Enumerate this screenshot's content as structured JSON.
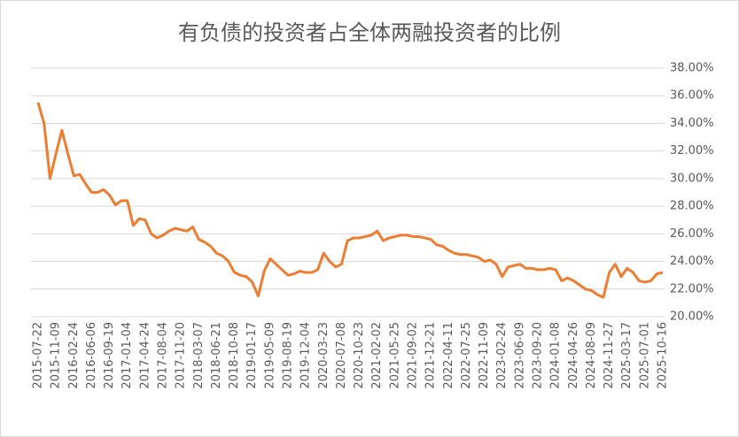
{
  "chart_data": {
    "type": "line",
    "title": "有负债的投资者占全体两融投资者的比例",
    "categories": [
      "2015-07-22",
      null,
      null,
      "2015-11-09",
      null,
      null,
      "2016-02-24",
      null,
      null,
      "2016-06-06",
      null,
      null,
      "2016-09-19",
      null,
      null,
      "2017-01-04",
      null,
      null,
      "2017-04-24",
      null,
      null,
      "2017-08-04",
      null,
      null,
      "2017-11-20",
      null,
      null,
      "2018-03-07",
      null,
      null,
      "2018-06-21",
      null,
      null,
      "2018-10-08",
      null,
      null,
      "2019-01-17",
      null,
      null,
      "2019-05-09",
      null,
      null,
      "2019-08-19",
      null,
      null,
      "2019-12-04",
      null,
      null,
      "2020-03-23",
      null,
      null,
      "2020-07-08",
      null,
      null,
      "2020-10-23",
      null,
      null,
      "2021-02-02",
      null,
      null,
      "2021-05-25",
      null,
      null,
      "2021-09-02",
      null,
      null,
      "2021-12-21",
      null,
      null,
      "2022-04-11",
      null,
      null,
      "2022-07-25",
      null,
      null,
      "2022-11-09",
      null,
      null,
      "2023-02-24",
      null,
      null,
      "2023-06-09",
      null,
      null,
      "2023-09-20",
      null,
      null,
      "2024-01-08",
      null,
      null,
      "2024-04-26",
      null,
      null,
      "2024-08-09",
      null,
      null,
      "2024-11-27",
      null,
      null,
      "2025-03-17",
      null,
      null,
      "2025-07-01",
      null,
      null,
      "2025-10-16"
    ],
    "values": [
      35.5,
      34.0,
      30.0,
      31.8,
      33.5,
      31.8,
      30.2,
      30.3,
      29.6,
      29.0,
      29.0,
      29.2,
      28.8,
      28.1,
      28.4,
      28.4,
      26.6,
      27.1,
      27.0,
      26.0,
      25.7,
      25.9,
      26.2,
      26.4,
      26.3,
      26.2,
      26.5,
      25.6,
      25.4,
      25.1,
      24.6,
      24.4,
      24.0,
      23.2,
      23.0,
      22.9,
      22.5,
      21.5,
      23.3,
      24.2,
      23.8,
      23.4,
      23.0,
      23.1,
      23.3,
      23.2,
      23.2,
      23.4,
      24.6,
      24.0,
      23.6,
      23.8,
      25.5,
      25.7,
      25.7,
      25.8,
      25.9,
      26.2,
      25.5,
      25.7,
      25.8,
      25.9,
      25.9,
      25.8,
      25.8,
      25.7,
      25.6,
      25.2,
      25.1,
      24.8,
      24.6,
      24.5,
      24.5,
      24.4,
      24.3,
      24.0,
      24.1,
      23.8,
      22.9,
      23.6,
      23.7,
      23.8,
      23.5,
      23.5,
      23.4,
      23.4,
      23.5,
      23.4,
      22.6,
      22.8,
      22.6,
      22.3,
      22.0,
      21.9,
      21.6,
      21.4,
      23.2,
      23.8,
      22.9,
      23.5,
      23.2,
      22.6,
      22.5,
      22.6,
      23.1,
      23.2
    ],
    "color": "#ed7d31",
    "ylim": [
      20,
      38
    ],
    "yticks": [
      {
        "value": 20,
        "label": "20.00%"
      },
      {
        "value": 22,
        "label": "22.00%"
      },
      {
        "value": 24,
        "label": "24.00%"
      },
      {
        "value": 26,
        "label": "26.00%"
      },
      {
        "value": 28,
        "label": "28.00%"
      },
      {
        "value": 30,
        "label": "30.00%"
      },
      {
        "value": 32,
        "label": "32.00%"
      },
      {
        "value": 34,
        "label": "34.00%"
      },
      {
        "value": 36,
        "label": "36.00%"
      },
      {
        "value": 38,
        "label": "38.00%"
      }
    ],
    "grid": true
  }
}
